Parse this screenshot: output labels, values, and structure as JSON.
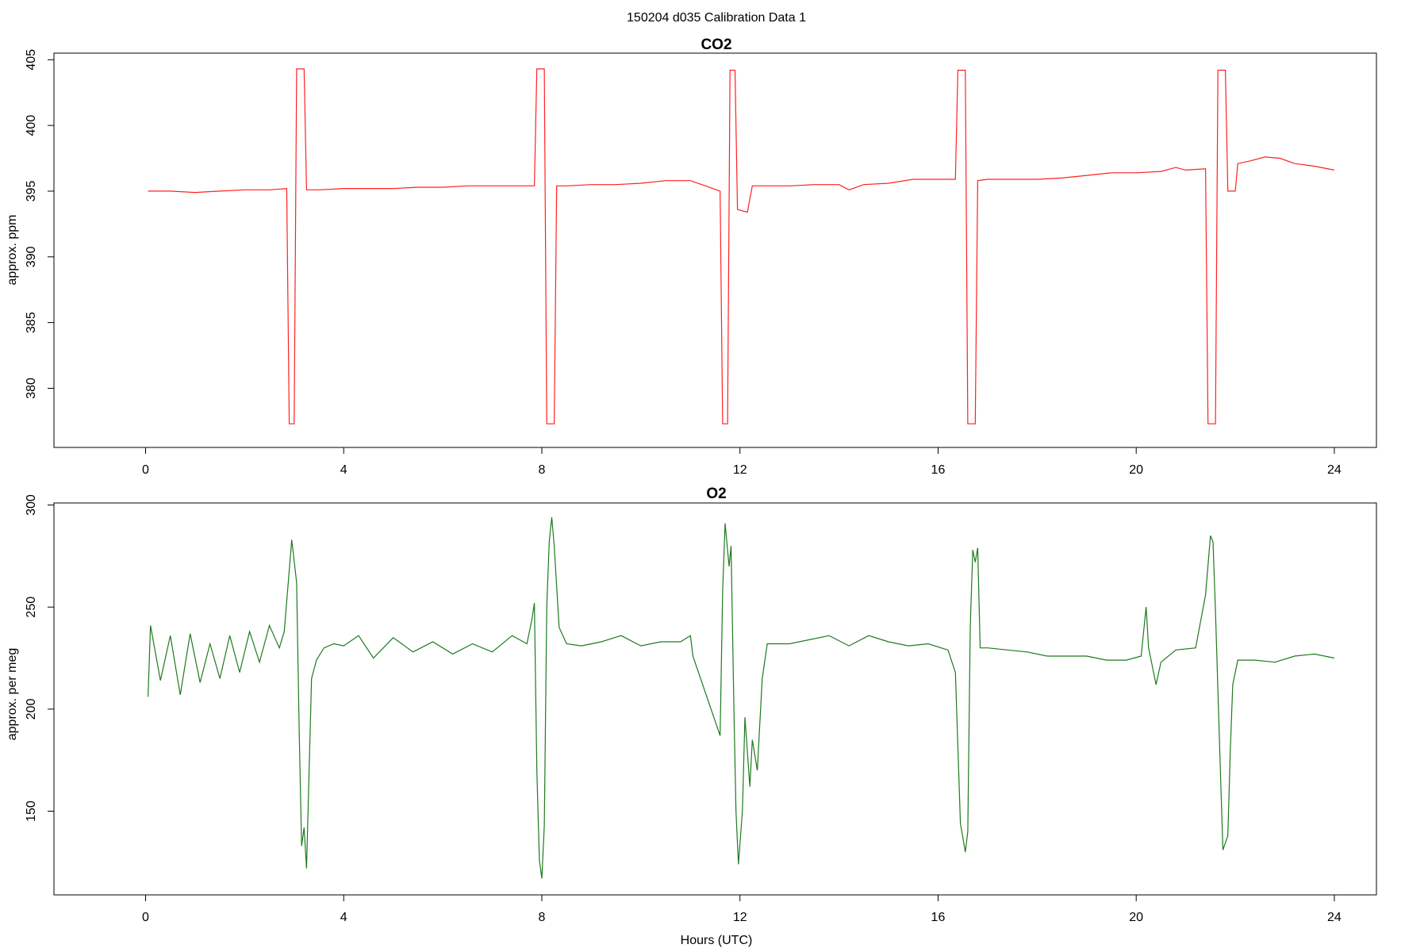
{
  "figure": {
    "title": "150204   d035   Calibration Data 1",
    "xlabel": "Hours (UTC)"
  },
  "chart_data": [
    {
      "type": "line",
      "title": "CO2",
      "ylabel": "approx. ppm",
      "color": "#ff2020",
      "xlim": [
        -1.85,
        24.85
      ],
      "ylim": [
        375.5,
        405.5
      ],
      "xticks": [
        0,
        4,
        8,
        12,
        16,
        20,
        24
      ],
      "yticks": [
        380,
        385,
        390,
        395,
        400,
        405
      ],
      "grid": false,
      "series": [
        {
          "points": [
            [
              0.05,
              395.0
            ],
            [
              0.5,
              395.0
            ],
            [
              1.0,
              394.9
            ],
            [
              1.5,
              395.0
            ],
            [
              2.0,
              395.1
            ],
            [
              2.5,
              395.1
            ],
            [
              2.85,
              395.2
            ],
            [
              2.9,
              377.3
            ],
            [
              3.0,
              377.3
            ],
            [
              3.05,
              404.3
            ],
            [
              3.2,
              404.3
            ],
            [
              3.25,
              395.1
            ],
            [
              3.5,
              395.1
            ],
            [
              4.0,
              395.2
            ],
            [
              4.5,
              395.2
            ],
            [
              5.0,
              395.2
            ],
            [
              5.5,
              395.3
            ],
            [
              6.0,
              395.3
            ],
            [
              6.5,
              395.4
            ],
            [
              7.0,
              395.4
            ],
            [
              7.5,
              395.4
            ],
            [
              7.85,
              395.4
            ],
            [
              7.9,
              404.3
            ],
            [
              8.05,
              404.3
            ],
            [
              8.1,
              377.3
            ],
            [
              8.25,
              377.3
            ],
            [
              8.3,
              395.4
            ],
            [
              8.5,
              395.4
            ],
            [
              9.0,
              395.5
            ],
            [
              9.5,
              395.5
            ],
            [
              10.0,
              395.6
            ],
            [
              10.5,
              395.8
            ],
            [
              11.0,
              395.8
            ],
            [
              11.6,
              395.0
            ],
            [
              11.65,
              377.3
            ],
            [
              11.75,
              377.3
            ],
            [
              11.8,
              404.2
            ],
            [
              11.9,
              404.2
            ],
            [
              11.95,
              393.6
            ],
            [
              12.15,
              393.4
            ],
            [
              12.25,
              395.4
            ],
            [
              12.5,
              395.4
            ],
            [
              13.0,
              395.4
            ],
            [
              13.5,
              395.5
            ],
            [
              14.0,
              395.5
            ],
            [
              14.2,
              395.1
            ],
            [
              14.5,
              395.5
            ],
            [
              15.0,
              395.6
            ],
            [
              15.5,
              395.9
            ],
            [
              16.0,
              395.9
            ],
            [
              16.35,
              395.9
            ],
            [
              16.4,
              404.2
            ],
            [
              16.55,
              404.2
            ],
            [
              16.6,
              377.3
            ],
            [
              16.75,
              377.3
            ],
            [
              16.8,
              395.8
            ],
            [
              17.0,
              395.9
            ],
            [
              17.5,
              395.9
            ],
            [
              18.0,
              395.9
            ],
            [
              18.5,
              396.0
            ],
            [
              19.0,
              396.2
            ],
            [
              19.5,
              396.4
            ],
            [
              20.0,
              396.4
            ],
            [
              20.5,
              396.5
            ],
            [
              20.8,
              396.8
            ],
            [
              21.0,
              396.6
            ],
            [
              21.4,
              396.7
            ],
            [
              21.45,
              377.3
            ],
            [
              21.6,
              377.3
            ],
            [
              21.65,
              404.2
            ],
            [
              21.8,
              404.2
            ],
            [
              21.85,
              395.0
            ],
            [
              22.0,
              395.0
            ],
            [
              22.05,
              397.1
            ],
            [
              22.3,
              397.3
            ],
            [
              22.6,
              397.6
            ],
            [
              22.9,
              397.5
            ],
            [
              23.2,
              397.1
            ],
            [
              23.6,
              396.9
            ],
            [
              24.0,
              396.6
            ]
          ]
        }
      ]
    },
    {
      "type": "line",
      "title": "O2",
      "ylabel": "approx. per meg",
      "color": "#1e7a1e",
      "xlim": [
        -1.85,
        24.85
      ],
      "ylim": [
        109,
        301
      ],
      "xticks": [
        0,
        4,
        8,
        12,
        16,
        20,
        24
      ],
      "yticks": [
        150,
        200,
        250,
        300
      ],
      "grid": false,
      "series": [
        {
          "points": [
            [
              0.05,
              206
            ],
            [
              0.1,
              241
            ],
            [
              0.3,
              214
            ],
            [
              0.5,
              236
            ],
            [
              0.7,
              207
            ],
            [
              0.9,
              237
            ],
            [
              1.1,
              213
            ],
            [
              1.3,
              232
            ],
            [
              1.5,
              215
            ],
            [
              1.7,
              236
            ],
            [
              1.9,
              218
            ],
            [
              2.1,
              238
            ],
            [
              2.3,
              223
            ],
            [
              2.5,
              241
            ],
            [
              2.7,
              230
            ],
            [
              2.8,
              238
            ],
            [
              2.9,
              268
            ],
            [
              2.95,
              283
            ],
            [
              3.05,
              262
            ],
            [
              3.1,
              190
            ],
            [
              3.15,
              133
            ],
            [
              3.2,
              142
            ],
            [
              3.25,
              122
            ],
            [
              3.35,
              215
            ],
            [
              3.45,
              224
            ],
            [
              3.6,
              230
            ],
            [
              3.8,
              232
            ],
            [
              4.0,
              231
            ],
            [
              4.3,
              236
            ],
            [
              4.6,
              225
            ],
            [
              5.0,
              235
            ],
            [
              5.4,
              228
            ],
            [
              5.8,
              233
            ],
            [
              6.2,
              227
            ],
            [
              6.6,
              232
            ],
            [
              7.0,
              228
            ],
            [
              7.4,
              236
            ],
            [
              7.7,
              232
            ],
            [
              7.8,
              244
            ],
            [
              7.85,
              252
            ],
            [
              7.9,
              170
            ],
            [
              7.95,
              126
            ],
            [
              8.0,
              117
            ],
            [
              8.05,
              143
            ],
            [
              8.1,
              250
            ],
            [
              8.15,
              282
            ],
            [
              8.2,
              294
            ],
            [
              8.25,
              280
            ],
            [
              8.35,
              240
            ],
            [
              8.5,
              232
            ],
            [
              8.8,
              231
            ],
            [
              9.2,
              233
            ],
            [
              9.6,
              236
            ],
            [
              10.0,
              231
            ],
            [
              10.4,
              233
            ],
            [
              10.8,
              233
            ],
            [
              11.0,
              236
            ],
            [
              11.05,
              226
            ],
            [
              11.6,
              187
            ],
            [
              11.65,
              258
            ],
            [
              11.7,
              291
            ],
            [
              11.78,
              270
            ],
            [
              11.82,
              280
            ],
            [
              11.88,
              198
            ],
            [
              11.92,
              150
            ],
            [
              11.97,
              124
            ],
            [
              12.05,
              150
            ],
            [
              12.1,
              196
            ],
            [
              12.2,
              162
            ],
            [
              12.25,
              185
            ],
            [
              12.35,
              170
            ],
            [
              12.45,
              215
            ],
            [
              12.55,
              232
            ],
            [
              12.7,
              232
            ],
            [
              13.0,
              232
            ],
            [
              13.4,
              234
            ],
            [
              13.8,
              236
            ],
            [
              14.2,
              231
            ],
            [
              14.6,
              236
            ],
            [
              15.0,
              233
            ],
            [
              15.4,
              231
            ],
            [
              15.8,
              232
            ],
            [
              16.2,
              229
            ],
            [
              16.35,
              218
            ],
            [
              16.45,
              144
            ],
            [
              16.55,
              130
            ],
            [
              16.6,
              140
            ],
            [
              16.65,
              240
            ],
            [
              16.7,
              278
            ],
            [
              16.75,
              272
            ],
            [
              16.8,
              279
            ],
            [
              16.85,
              230
            ],
            [
              17.0,
              230
            ],
            [
              17.4,
              229
            ],
            [
              17.8,
              228
            ],
            [
              18.2,
              226
            ],
            [
              18.6,
              226
            ],
            [
              19.0,
              226
            ],
            [
              19.4,
              224
            ],
            [
              19.8,
              224
            ],
            [
              20.1,
              226
            ],
            [
              20.2,
              250
            ],
            [
              20.25,
              230
            ],
            [
              20.4,
              212
            ],
            [
              20.5,
              223
            ],
            [
              20.8,
              229
            ],
            [
              21.2,
              230
            ],
            [
              21.4,
              256
            ],
            [
              21.5,
              285
            ],
            [
              21.55,
              282
            ],
            [
              21.6,
              248
            ],
            [
              21.7,
              170
            ],
            [
              21.75,
              131
            ],
            [
              21.85,
              138
            ],
            [
              21.9,
              180
            ],
            [
              21.95,
              212
            ],
            [
              22.05,
              224
            ],
            [
              22.4,
              224
            ],
            [
              22.8,
              223
            ],
            [
              23.2,
              226
            ],
            [
              23.6,
              227
            ],
            [
              24.0,
              225
            ]
          ]
        }
      ]
    }
  ]
}
